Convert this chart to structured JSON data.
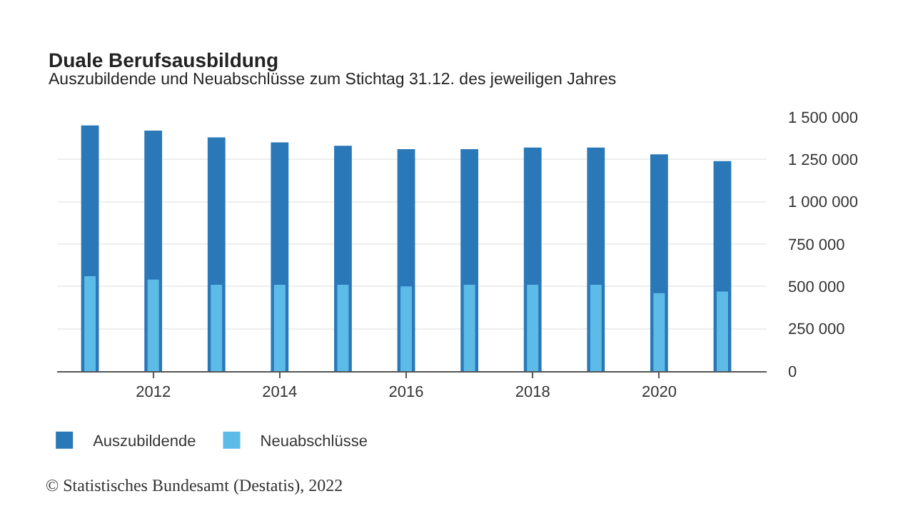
{
  "chart_data": {
    "type": "bar",
    "title": "Duale Berufsausbildung",
    "subtitle": "Auszubildende und Neuabschlüsse zum Stichtag 31.12. des jeweiligen Jahres",
    "x": [
      2011,
      2012,
      2013,
      2014,
      2015,
      2016,
      2017,
      2018,
      2019,
      2020,
      2021
    ],
    "series": [
      {
        "name": "Auszubildende",
        "color": "#2a78b8",
        "values": [
          1450000,
          1420000,
          1380000,
          1350000,
          1330000,
          1310000,
          1310000,
          1320000,
          1320000,
          1280000,
          1240000
        ]
      },
      {
        "name": "Neuabschlüsse",
        "color": "#5dbbe8",
        "values": [
          560000,
          540000,
          510000,
          510000,
          510000,
          500000,
          510000,
          510000,
          510000,
          460000,
          470000
        ]
      }
    ],
    "xlim": [
      2010.48,
      2021.7
    ],
    "xticks": [
      2012,
      2014,
      2016,
      2018,
      2020
    ],
    "ylim": [
      0,
      1500000
    ],
    "yticks": [
      {
        "value": 0,
        "label": "0"
      },
      {
        "value": 250000,
        "label": "250 000"
      },
      {
        "value": 500000,
        "label": "500 000"
      },
      {
        "value": 750000,
        "label": "750 000"
      },
      {
        "value": 1000000,
        "label": "1 000 000"
      },
      {
        "value": 1250000,
        "label": "1 250 000"
      },
      {
        "value": 1500000,
        "label": "1 500 000"
      }
    ],
    "grid": "y",
    "legend": "bottom left",
    "annotations": [
      "© Statistisches Bundesamt (Destatis), 2022"
    ]
  }
}
